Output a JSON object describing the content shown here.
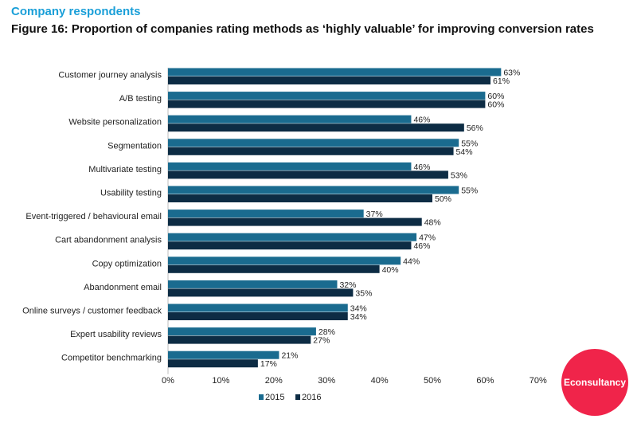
{
  "header": {
    "kicker": "Company respondents",
    "title": "Figure 16: Proportion of companies rating methods as ‘highly valuable’ for improving conversion rates"
  },
  "chart_data": {
    "type": "bar",
    "orientation": "horizontal",
    "categories": [
      "Customer journey analysis",
      "A/B testing",
      "Website personalization",
      "Segmentation",
      "Multivariate testing",
      "Usability testing",
      "Event-triggered / behavioural email",
      "Cart abandonment analysis",
      "Copy optimization",
      "Abandonment email",
      "Online surveys / customer feedback",
      "Expert usability reviews",
      "Competitor benchmarking"
    ],
    "series": [
      {
        "name": "2015",
        "color": "#1a6b8f",
        "values": [
          63,
          60,
          46,
          55,
          46,
          55,
          37,
          47,
          44,
          32,
          34,
          28,
          21
        ]
      },
      {
        "name": "2016",
        "color": "#0d2c44",
        "values": [
          61,
          60,
          56,
          54,
          53,
          50,
          48,
          46,
          40,
          35,
          34,
          27,
          17
        ]
      }
    ],
    "xlim": [
      0,
      70
    ],
    "xticks": [
      "0%",
      "10%",
      "20%",
      "30%",
      "40%",
      "50%",
      "60%",
      "70%"
    ],
    "value_suffix": "%",
    "legend_position": "bottom"
  },
  "logo": {
    "text": "Econsultancy",
    "color": "#f0244a"
  }
}
